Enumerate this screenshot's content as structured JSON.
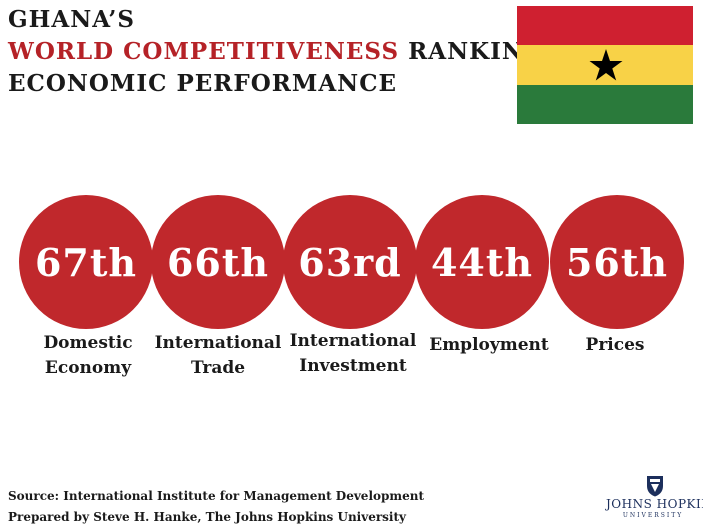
{
  "title": {
    "line1": "GHANA’S",
    "accent": "WORLD COMPETITIVENESS",
    "line2_rest": " RANKING:",
    "line3": "ECONOMIC PERFORMANCE"
  },
  "colors": {
    "accent": "#b52227",
    "circle": "#c0282c",
    "flag_red": "#cf2030",
    "flag_gold": "#f8d247",
    "flag_green": "#2a7a3b",
    "jhu_blue": "#1c2f5c"
  },
  "rankings": [
    {
      "rank": "67th",
      "label_line1": "Domestic",
      "label_line2": "Economy"
    },
    {
      "rank": "66th",
      "label_line1": "International",
      "label_line2": "Trade"
    },
    {
      "rank": "63rd",
      "label_line1": "International",
      "label_line2": "Investment"
    },
    {
      "rank": "44th",
      "label_line1": "Employment",
      "label_line2": ""
    },
    {
      "rank": "56th",
      "label_line1": "Prices",
      "label_line2": ""
    }
  ],
  "footer": {
    "source": "Source: International Institute for Management Development",
    "prepared_by": "Prepared by Steve H. Hanke, The Johns Hopkins University"
  },
  "logo": {
    "name": "JOHNS HOPKINS",
    "sub": "UNIVERSITY",
    "icon": "university-shield-icon"
  },
  "flag_icon": "ghana-flag-icon"
}
